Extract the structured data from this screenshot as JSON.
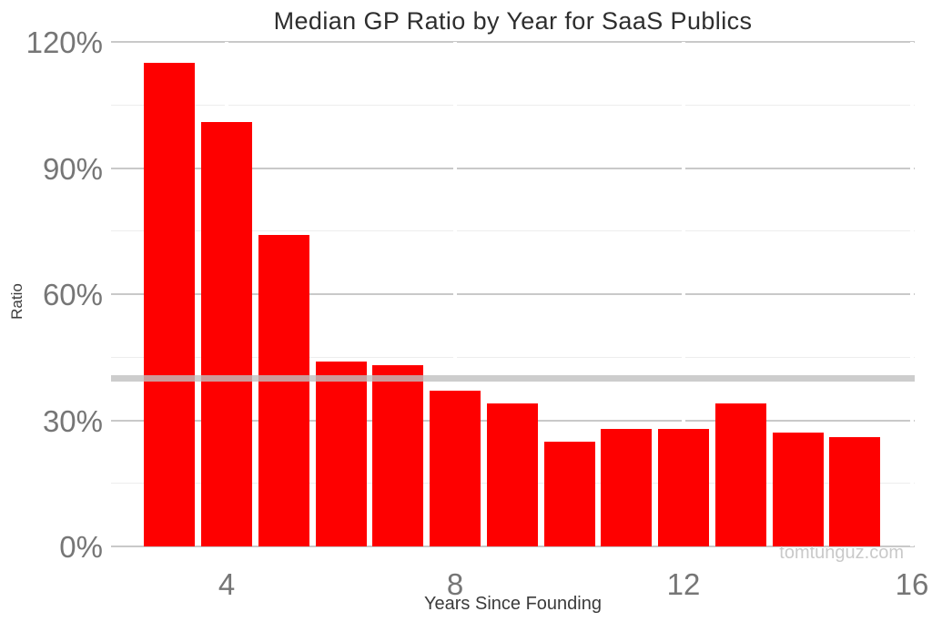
{
  "title": "Median GP Ratio by Year for SaaS Publics",
  "watermark": "tomtunguz.com",
  "y_axis": {
    "label": "Ratio"
  },
  "x_axis": {
    "label": "Years Since Founding"
  },
  "colors": {
    "bar": "#fe0000",
    "major_grid": "#c9c9c9",
    "minor_grid": "#ededed",
    "reference_line": "#c0c0c0",
    "tick_label": "#767676",
    "axis_title": "#3b3b3b",
    "title_text": "#2e2e2e",
    "watermark_text": "#c9c9c9"
  },
  "chart_data": {
    "type": "bar",
    "title": "Median GP Ratio by Year for SaaS Publics",
    "xlabel": "Years Since Founding",
    "ylabel": "Ratio",
    "x": [
      3,
      4,
      5,
      6,
      7,
      8,
      9,
      10,
      11,
      12,
      13,
      14,
      15
    ],
    "values": [
      115,
      101,
      74,
      44,
      43,
      37,
      34,
      25,
      28,
      28,
      34,
      27,
      26
    ],
    "values_unit": "percent",
    "ylim": [
      0,
      120
    ],
    "y_major_ticks": [
      0,
      30,
      60,
      90,
      120
    ],
    "y_tick_labels": [
      "0%",
      "30%",
      "60%",
      "90%",
      "120%"
    ],
    "y_minor_gridlines": [
      15,
      45,
      75,
      105
    ],
    "x_ticks": [
      4,
      8,
      12,
      16
    ],
    "x_tick_labels": [
      "4",
      "8",
      "12",
      "16"
    ],
    "reference_line": 40,
    "grid": true,
    "legend": false
  }
}
